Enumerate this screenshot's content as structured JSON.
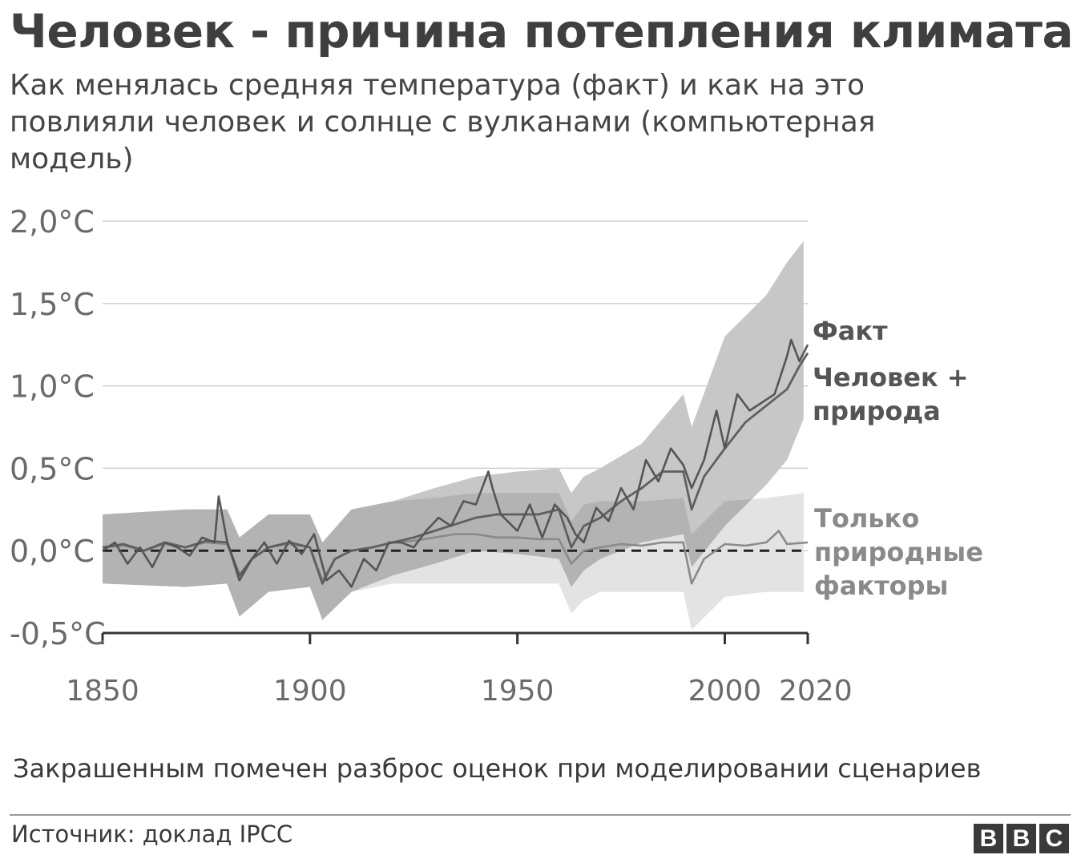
{
  "header": {
    "title": "Человек - причина потепления климата",
    "subtitle": "Как менялась средняя температура (факт) и как на это повлияли человек и солнце с вулканами (компьютерная модель)"
  },
  "footer": {
    "note": "Закрашенным помечен разброс оценок при моделировании сценариев",
    "source": "Источник: доклад IPCC",
    "logo_letters": [
      "B",
      "B",
      "C"
    ]
  },
  "colors": {
    "observed": "#555555",
    "human_natural": "#5f5f5f",
    "natural_only": "#8a8a8a",
    "human_band": "#c7c7c7",
    "natural_band": "#e3e3e3",
    "overlap_band": "#acacac",
    "grid": "#cfcfcf",
    "axis": "#333333",
    "tick_text": "#6a6a6a"
  },
  "chart_data": {
    "type": "line",
    "title": "Человек - причина потепления климата",
    "xlabel": "",
    "ylabel": "",
    "xlim": [
      1850,
      2020
    ],
    "ylim": [
      -0.5,
      2.0
    ],
    "y_ticks": [
      2.0,
      1.5,
      1.0,
      0.5,
      0.0,
      -0.5
    ],
    "y_tick_labels": [
      "2,0°C",
      "1,5°C",
      "1,0°C",
      "0,5°C",
      "0,0°C",
      "-0,5°C"
    ],
    "x_ticks": [
      1850,
      1900,
      1950,
      2000,
      2020
    ],
    "x_tick_labels": [
      "1850",
      "1900",
      "1950",
      "2000",
      "2020"
    ],
    "grid": true,
    "baseline": 0.0,
    "series": [
      {
        "name": "Факт",
        "label_lines": [
          "Факт"
        ],
        "x": [
          1850,
          1853,
          1856,
          1859,
          1862,
          1865,
          1868,
          1871,
          1874,
          1877,
          1878,
          1880,
          1883,
          1886,
          1889,
          1892,
          1895,
          1898,
          1901,
          1904,
          1907,
          1910,
          1913,
          1916,
          1919,
          1922,
          1925,
          1928,
          1931,
          1934,
          1937,
          1940,
          1943,
          1944,
          1946,
          1950,
          1953,
          1956,
          1959,
          1962,
          1964,
          1966,
          1969,
          1972,
          1975,
          1978,
          1981,
          1984,
          1987,
          1990,
          1992,
          1995,
          1998,
          2000,
          2003,
          2006,
          2009,
          2012,
          2015,
          2016,
          2018,
          2020
        ],
        "y": [
          0.0,
          0.05,
          -0.08,
          0.02,
          -0.1,
          0.05,
          0.02,
          -0.03,
          0.08,
          0.05,
          0.33,
          0.06,
          -0.18,
          -0.05,
          0.05,
          -0.08,
          0.06,
          -0.02,
          0.1,
          -0.18,
          -0.12,
          -0.22,
          -0.05,
          -0.12,
          0.05,
          0.05,
          0.02,
          0.12,
          0.2,
          0.15,
          0.3,
          0.28,
          0.48,
          0.38,
          0.22,
          0.12,
          0.28,
          0.08,
          0.28,
          0.2,
          0.1,
          0.05,
          0.26,
          0.18,
          0.38,
          0.25,
          0.55,
          0.42,
          0.62,
          0.52,
          0.38,
          0.55,
          0.85,
          0.62,
          0.95,
          0.85,
          0.9,
          0.95,
          1.18,
          1.28,
          1.15,
          1.25
        ]
      },
      {
        "name": "Человек + природа",
        "label_lines": [
          "Человек +",
          "природа"
        ],
        "x": [
          1850,
          1855,
          1860,
          1865,
          1870,
          1875,
          1880,
          1883,
          1886,
          1890,
          1895,
          1900,
          1903,
          1906,
          1910,
          1915,
          1920,
          1925,
          1930,
          1935,
          1940,
          1945,
          1950,
          1955,
          1960,
          1963,
          1966,
          1970,
          1975,
          1980,
          1985,
          1990,
          1992,
          1995,
          2000,
          2005,
          2010,
          2015,
          2018,
          2020
        ],
        "y": [
          0.02,
          0.04,
          0.0,
          0.05,
          0.02,
          0.06,
          0.05,
          -0.15,
          -0.05,
          0.02,
          0.05,
          0.02,
          -0.2,
          -0.05,
          0.0,
          0.02,
          0.05,
          0.08,
          0.12,
          0.16,
          0.2,
          0.22,
          0.22,
          0.22,
          0.25,
          0.02,
          0.15,
          0.2,
          0.3,
          0.38,
          0.48,
          0.48,
          0.25,
          0.45,
          0.62,
          0.78,
          0.88,
          0.98,
          1.12,
          1.2
        ]
      },
      {
        "name": "Только природные факторы",
        "label_lines": [
          "Только",
          "природные",
          "факторы"
        ],
        "x": [
          1850,
          1855,
          1860,
          1865,
          1870,
          1875,
          1880,
          1883,
          1886,
          1890,
          1895,
          1900,
          1903,
          1906,
          1910,
          1915,
          1920,
          1925,
          1930,
          1935,
          1940,
          1945,
          1950,
          1955,
          1960,
          1963,
          1966,
          1970,
          1975,
          1980,
          1985,
          1990,
          1992,
          1995,
          2000,
          2005,
          2010,
          2013,
          2015,
          2020
        ],
        "y": [
          0.02,
          0.03,
          0.0,
          0.04,
          0.02,
          0.05,
          0.04,
          -0.15,
          -0.05,
          0.02,
          0.04,
          0.02,
          -0.18,
          -0.05,
          0.0,
          0.02,
          0.05,
          0.06,
          0.08,
          0.1,
          0.1,
          0.08,
          0.08,
          0.07,
          0.07,
          -0.08,
          0.0,
          0.02,
          0.04,
          0.03,
          0.05,
          0.05,
          -0.2,
          -0.05,
          0.04,
          0.03,
          0.05,
          0.12,
          0.04,
          0.05
        ]
      }
    ],
    "bands": [
      {
        "name": "Человек + природа",
        "x": [
          1850,
          1870,
          1880,
          1883,
          1890,
          1900,
          1903,
          1910,
          1920,
          1930,
          1940,
          1950,
          1960,
          1963,
          1966,
          1970,
          1980,
          1990,
          1992,
          2000,
          2010,
          2015,
          2019
        ],
        "low": [
          -0.2,
          -0.22,
          -0.2,
          -0.4,
          -0.25,
          -0.22,
          -0.42,
          -0.25,
          -0.15,
          -0.08,
          0.0,
          -0.02,
          -0.05,
          -0.22,
          -0.12,
          -0.05,
          0.05,
          0.1,
          -0.1,
          0.15,
          0.4,
          0.55,
          0.8
        ],
        "high": [
          0.22,
          0.25,
          0.25,
          0.08,
          0.22,
          0.22,
          0.05,
          0.25,
          0.3,
          0.38,
          0.45,
          0.48,
          0.5,
          0.35,
          0.45,
          0.5,
          0.65,
          0.95,
          0.75,
          1.3,
          1.55,
          1.75,
          1.88
        ]
      },
      {
        "name": "Только природные факторы",
        "x": [
          1850,
          1870,
          1880,
          1883,
          1890,
          1900,
          1903,
          1910,
          1920,
          1930,
          1940,
          1950,
          1960,
          1963,
          1966,
          1970,
          1980,
          1990,
          1992,
          2000,
          2010,
          2019
        ],
        "low": [
          -0.2,
          -0.22,
          -0.2,
          -0.4,
          -0.25,
          -0.22,
          -0.42,
          -0.25,
          -0.2,
          -0.2,
          -0.2,
          -0.2,
          -0.2,
          -0.38,
          -0.3,
          -0.25,
          -0.25,
          -0.25,
          -0.48,
          -0.28,
          -0.25,
          -0.25
        ],
        "high": [
          0.22,
          0.25,
          0.25,
          0.08,
          0.22,
          0.22,
          0.05,
          0.25,
          0.3,
          0.32,
          0.35,
          0.35,
          0.35,
          0.18,
          0.28,
          0.3,
          0.3,
          0.32,
          0.1,
          0.3,
          0.32,
          0.35
        ]
      }
    ]
  }
}
